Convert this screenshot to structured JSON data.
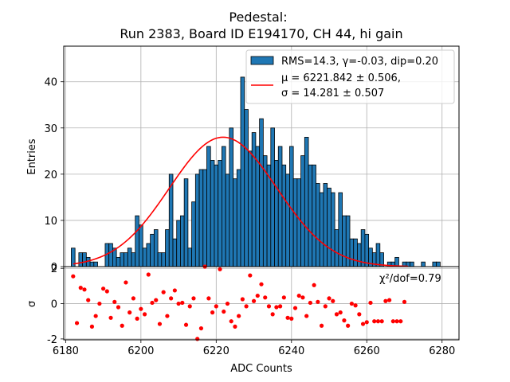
{
  "chart_data": [
    {
      "type": "bar",
      "panel": "histogram",
      "title_lines": [
        "Pedestal:",
        "Run 2383, Board ID E194170, CH 44, hi gain"
      ],
      "xlabel": "",
      "ylabel": "Entries",
      "xlim": [
        6179.5,
        6284.5
      ],
      "ylim": [
        0,
        47.7
      ],
      "yticks": [
        0,
        10,
        20,
        30,
        40
      ],
      "grid": true,
      "bin_start": 6182,
      "bin_width": 1,
      "colors": {
        "bar": "#1f77b4",
        "edge": "#000000",
        "fit": "#ff0000"
      },
      "values": [
        4,
        0,
        3,
        3,
        2,
        1,
        1,
        0,
        0,
        5,
        5,
        4,
        2,
        3,
        3,
        4,
        3,
        11,
        9,
        4,
        5,
        7,
        8,
        3,
        3,
        8,
        20,
        6,
        10,
        11,
        19,
        4,
        14,
        20,
        21,
        21,
        26,
        23,
        22,
        23,
        26,
        20,
        30,
        19,
        21,
        41,
        34,
        25,
        29,
        26,
        32,
        24,
        22,
        30,
        23,
        26,
        22,
        20,
        26,
        19,
        19,
        24,
        28,
        22,
        22,
        18,
        16,
        18,
        17,
        16,
        8,
        16,
        11,
        11,
        6,
        6,
        5,
        8,
        7,
        4,
        3,
        5,
        3,
        0,
        1,
        1,
        2,
        0,
        1,
        1,
        1,
        0,
        0,
        1,
        0,
        0,
        1,
        1
      ],
      "fit": {
        "type": "gaussian",
        "mu": 6221.842,
        "sigma": 14.281,
        "amplitude": 28.0,
        "x_range": [
          6182,
          6271
        ]
      },
      "legend": {
        "position": "top-right",
        "entries": [
          {
            "kind": "patch",
            "label": "RMS=14.3, γ=-0.03, dip=0.20"
          },
          {
            "kind": "line",
            "label_line1": "μ = 6221.842 ± 0.506,",
            "label_line2": "σ = 14.281 ± 0.507"
          }
        ]
      }
    },
    {
      "type": "scatter",
      "panel": "residuals",
      "xlabel": "ADC Counts",
      "ylabel": "σ",
      "xlim": [
        6179.5,
        6284.5
      ],
      "ylim": [
        -2.05,
        2.1
      ],
      "xticks": [
        6180,
        6200,
        6220,
        6240,
        6260,
        6280
      ],
      "yticks": [
        -2,
        0,
        2
      ],
      "grid": true,
      "annotation": "χ²/dof=0.79",
      "points": [
        [
          6182,
          1.55
        ],
        [
          6183,
          -1.1
        ],
        [
          6184,
          0.9
        ],
        [
          6185,
          0.8
        ],
        [
          6186,
          0.2
        ],
        [
          6187,
          -1.3
        ],
        [
          6188,
          -0.7
        ],
        [
          6189,
          0.0
        ],
        [
          6190,
          0.85
        ],
        [
          6191,
          0.7
        ],
        [
          6192,
          -0.8
        ],
        [
          6193,
          0.1
        ],
        [
          6194,
          -0.2
        ],
        [
          6195,
          -1.25
        ],
        [
          6196,
          1.2
        ],
        [
          6197,
          -0.5
        ],
        [
          6198,
          0.3
        ],
        [
          6199,
          -0.85
        ],
        [
          6200,
          -0.3
        ],
        [
          6201,
          -0.6
        ],
        [
          6202,
          1.65
        ],
        [
          6203,
          0.05
        ],
        [
          6204,
          0.2
        ],
        [
          6205,
          -1.15
        ],
        [
          6206,
          0.65
        ],
        [
          6207,
          -0.7
        ],
        [
          6208,
          0.3
        ],
        [
          6209,
          0.75
        ],
        [
          6210,
          0.0
        ],
        [
          6211,
          0.05
        ],
        [
          6212,
          -1.2
        ],
        [
          6213,
          -0.15
        ],
        [
          6214,
          0.3
        ],
        [
          6215,
          -2.0
        ],
        [
          6216,
          -1.4
        ],
        [
          6217,
          2.1
        ],
        [
          6218,
          0.3
        ],
        [
          6219,
          -0.5
        ],
        [
          6220,
          -0.15
        ],
        [
          6221,
          1.95
        ],
        [
          6222,
          -0.45
        ],
        [
          6223,
          0.0
        ],
        [
          6224,
          -1.0
        ],
        [
          6225,
          -1.3
        ],
        [
          6226,
          -0.7
        ],
        [
          6227,
          0.25
        ],
        [
          6228,
          -0.15
        ],
        [
          6229,
          1.6
        ],
        [
          6230,
          0.15
        ],
        [
          6231,
          0.45
        ],
        [
          6232,
          1.1
        ],
        [
          6233,
          0.35
        ],
        [
          6234,
          -0.15
        ],
        [
          6235,
          -0.6
        ],
        [
          6236,
          -0.2
        ],
        [
          6237,
          -0.15
        ],
        [
          6238,
          0.35
        ],
        [
          6239,
          -0.8
        ],
        [
          6240,
          -0.85
        ],
        [
          6241,
          -0.25
        ],
        [
          6242,
          0.45
        ],
        [
          6243,
          0.35
        ],
        [
          6244,
          -0.7
        ],
        [
          6245,
          0.05
        ],
        [
          6246,
          1.05
        ],
        [
          6247,
          0.1
        ],
        [
          6248,
          -1.25
        ],
        [
          6249,
          -0.15
        ],
        [
          6250,
          0.3
        ],
        [
          6251,
          0.15
        ],
        [
          6252,
          -0.6
        ],
        [
          6253,
          -0.5
        ],
        [
          6254,
          -0.95
        ],
        [
          6255,
          -1.25
        ],
        [
          6256,
          0.0
        ],
        [
          6257,
          -0.1
        ],
        [
          6258,
          -0.6
        ],
        [
          6259,
          -1.15
        ],
        [
          6260,
          -1.05
        ],
        [
          6261,
          0.05
        ],
        [
          6262,
          -1.0
        ],
        [
          6263,
          -1.0
        ],
        [
          6264,
          -1.0
        ],
        [
          6265,
          0.15
        ],
        [
          6266,
          0.2
        ],
        [
          6267,
          -1.0
        ],
        [
          6268,
          -1.0
        ],
        [
          6269,
          -1.0
        ],
        [
          6270,
          0.1
        ]
      ],
      "point_color": "#ff0000"
    }
  ]
}
